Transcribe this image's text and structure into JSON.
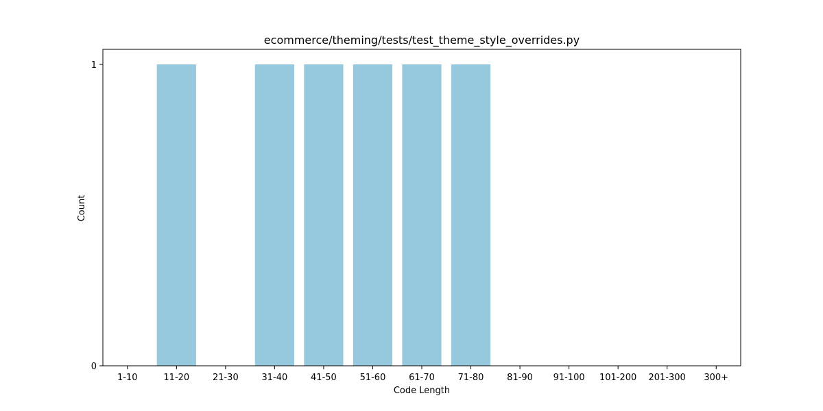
{
  "chart_data": {
    "type": "bar",
    "title": "ecommerce/theming/tests/test_theme_style_overrides.py",
    "xlabel": "Code Length",
    "ylabel": "Count",
    "categories": [
      "1-10",
      "11-20",
      "21-30",
      "31-40",
      "41-50",
      "51-60",
      "61-70",
      "71-80",
      "81-90",
      "91-100",
      "101-200",
      "201-300",
      "300+"
    ],
    "values": [
      0,
      1,
      0,
      1,
      1,
      1,
      1,
      1,
      0,
      0,
      0,
      0,
      0
    ],
    "ylim": [
      0,
      1.05
    ],
    "yticks": [
      0,
      1
    ],
    "bar_color": "#96c9dd",
    "grid": false,
    "legend": "none"
  }
}
